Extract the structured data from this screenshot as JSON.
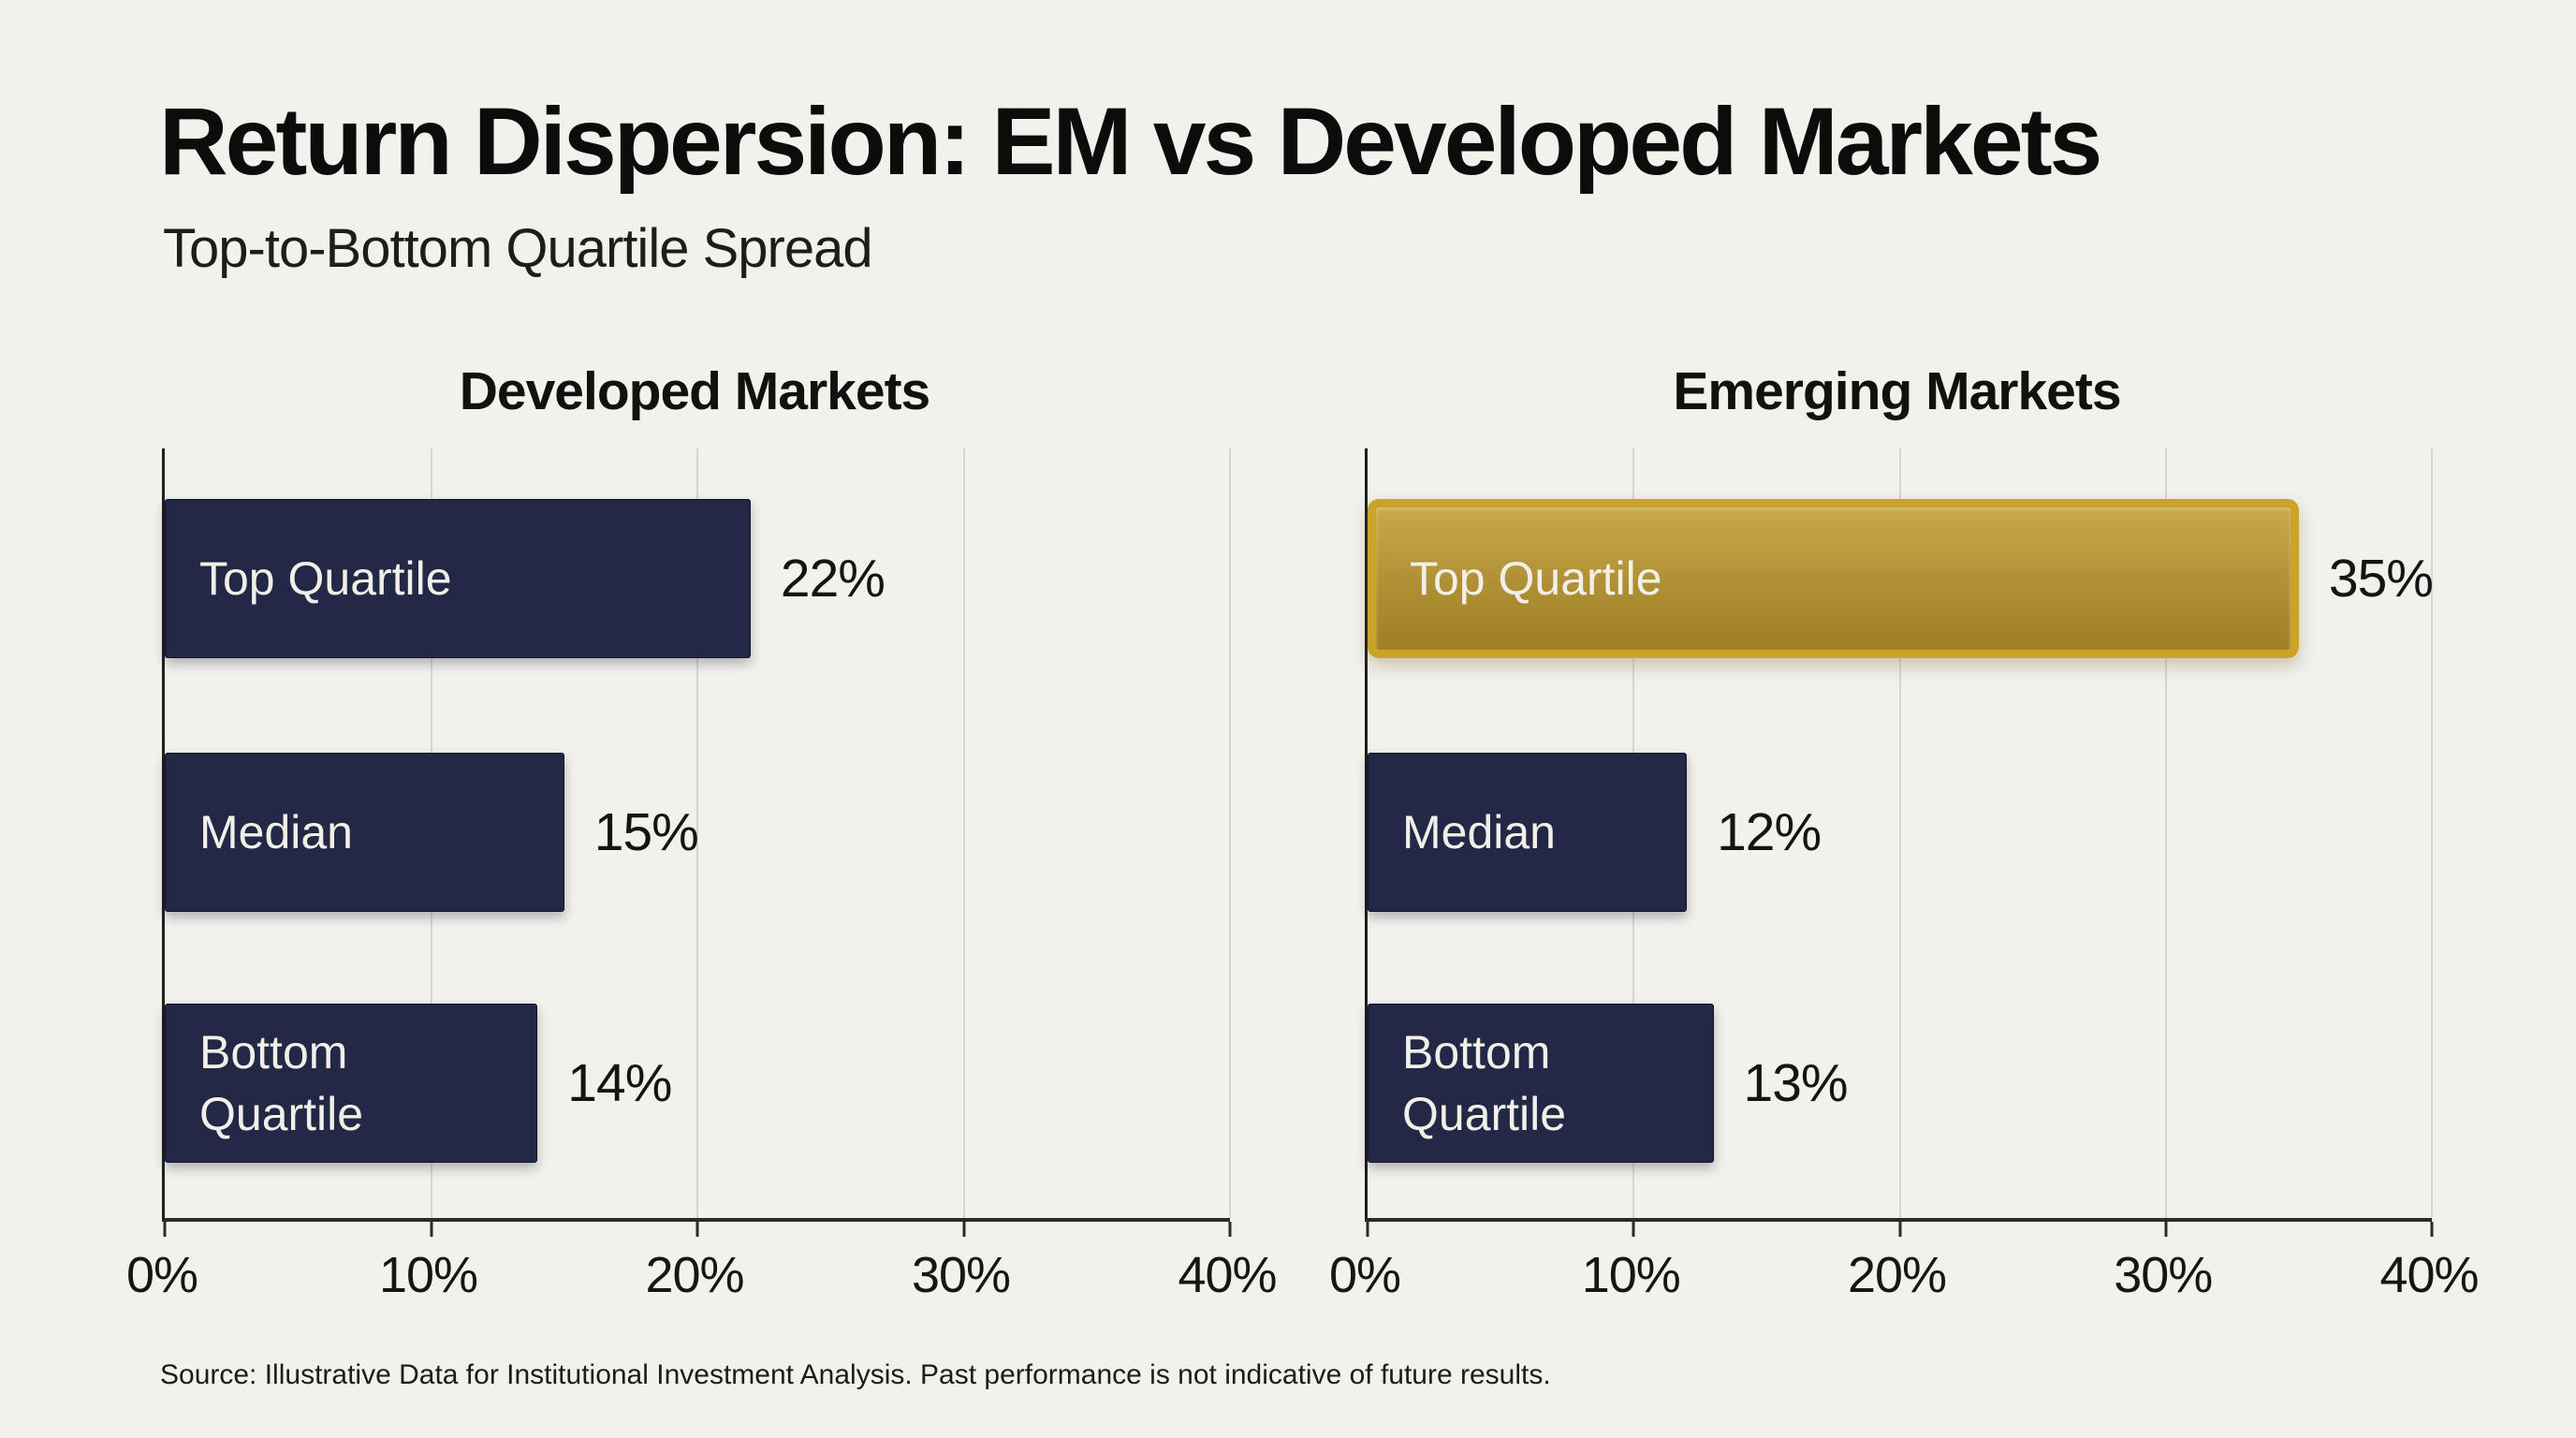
{
  "header": {
    "title": "Return Dispersion: EM vs Developed Markets",
    "subtitle": "Top-to-Bottom Quartile Spread"
  },
  "charts": [
    {
      "title": "Developed Markets",
      "axis": {
        "max": 40,
        "ticks": [
          "0%",
          "10%",
          "20%",
          "30%",
          "40%"
        ]
      },
      "bars": [
        {
          "label": "Top Quartile",
          "value": 22,
          "value_label": "22%",
          "style": "navy"
        },
        {
          "label": "Median",
          "value": 15,
          "value_label": "15%",
          "style": "navy"
        },
        {
          "label": "Bottom Quartile",
          "value": 14,
          "value_label": "14%",
          "style": "navy"
        }
      ]
    },
    {
      "title": "Emerging Markets",
      "axis": {
        "max": 40,
        "ticks": [
          "0%",
          "10%",
          "20%",
          "30%",
          "40%"
        ]
      },
      "bars": [
        {
          "label": "Top Quartile",
          "value": 35,
          "value_label": "35%",
          "style": "gold"
        },
        {
          "label": "Median",
          "value": 12,
          "value_label": "12%",
          "style": "navy"
        },
        {
          "label": "Bottom Quartile",
          "value": 13,
          "value_label": "13%",
          "style": "navy"
        }
      ]
    }
  ],
  "footer": {
    "source": "Source: Illustrative Data for Institutional Investment Analysis. Past performance is not indicative of future results."
  },
  "colors": {
    "background": "#f2f1ec",
    "navy_bar": "#222845",
    "gold_bar_fill": "#b08e2d",
    "gold_bar_border": "#c9a428",
    "axis_line": "#2b2b28",
    "gridline": "#d9d6d1",
    "title_text": "#0c0c0c",
    "bar_label_text": "#f2efe8",
    "value_text": "#141414"
  },
  "chart_data": {
    "type": "bar",
    "orientation": "horizontal",
    "title": "Return Dispersion: EM vs Developed Markets",
    "subtitle": "Top-to-Bottom Quartile Spread",
    "categories": [
      "Top Quartile",
      "Median",
      "Bottom Quartile"
    ],
    "series": [
      {
        "name": "Developed Markets",
        "values": [
          22,
          15,
          14
        ]
      },
      {
        "name": "Emerging Markets",
        "values": [
          35,
          12,
          13
        ]
      }
    ],
    "value_unit": "%",
    "xlabel": "",
    "ylabel": "",
    "xlim": [
      0,
      40
    ],
    "x_tick_labels": [
      "0%",
      "10%",
      "20%",
      "30%",
      "40%"
    ],
    "grid": true,
    "legend": false,
    "panel_layout": "two side-by-side panels, one per series",
    "highlight": "Emerging Markets Top Quartile bar rendered in gold; all other bars navy",
    "annotation": "Source: Illustrative Data for Institutional Investment Analysis. Past performance is not indicative of future results."
  }
}
